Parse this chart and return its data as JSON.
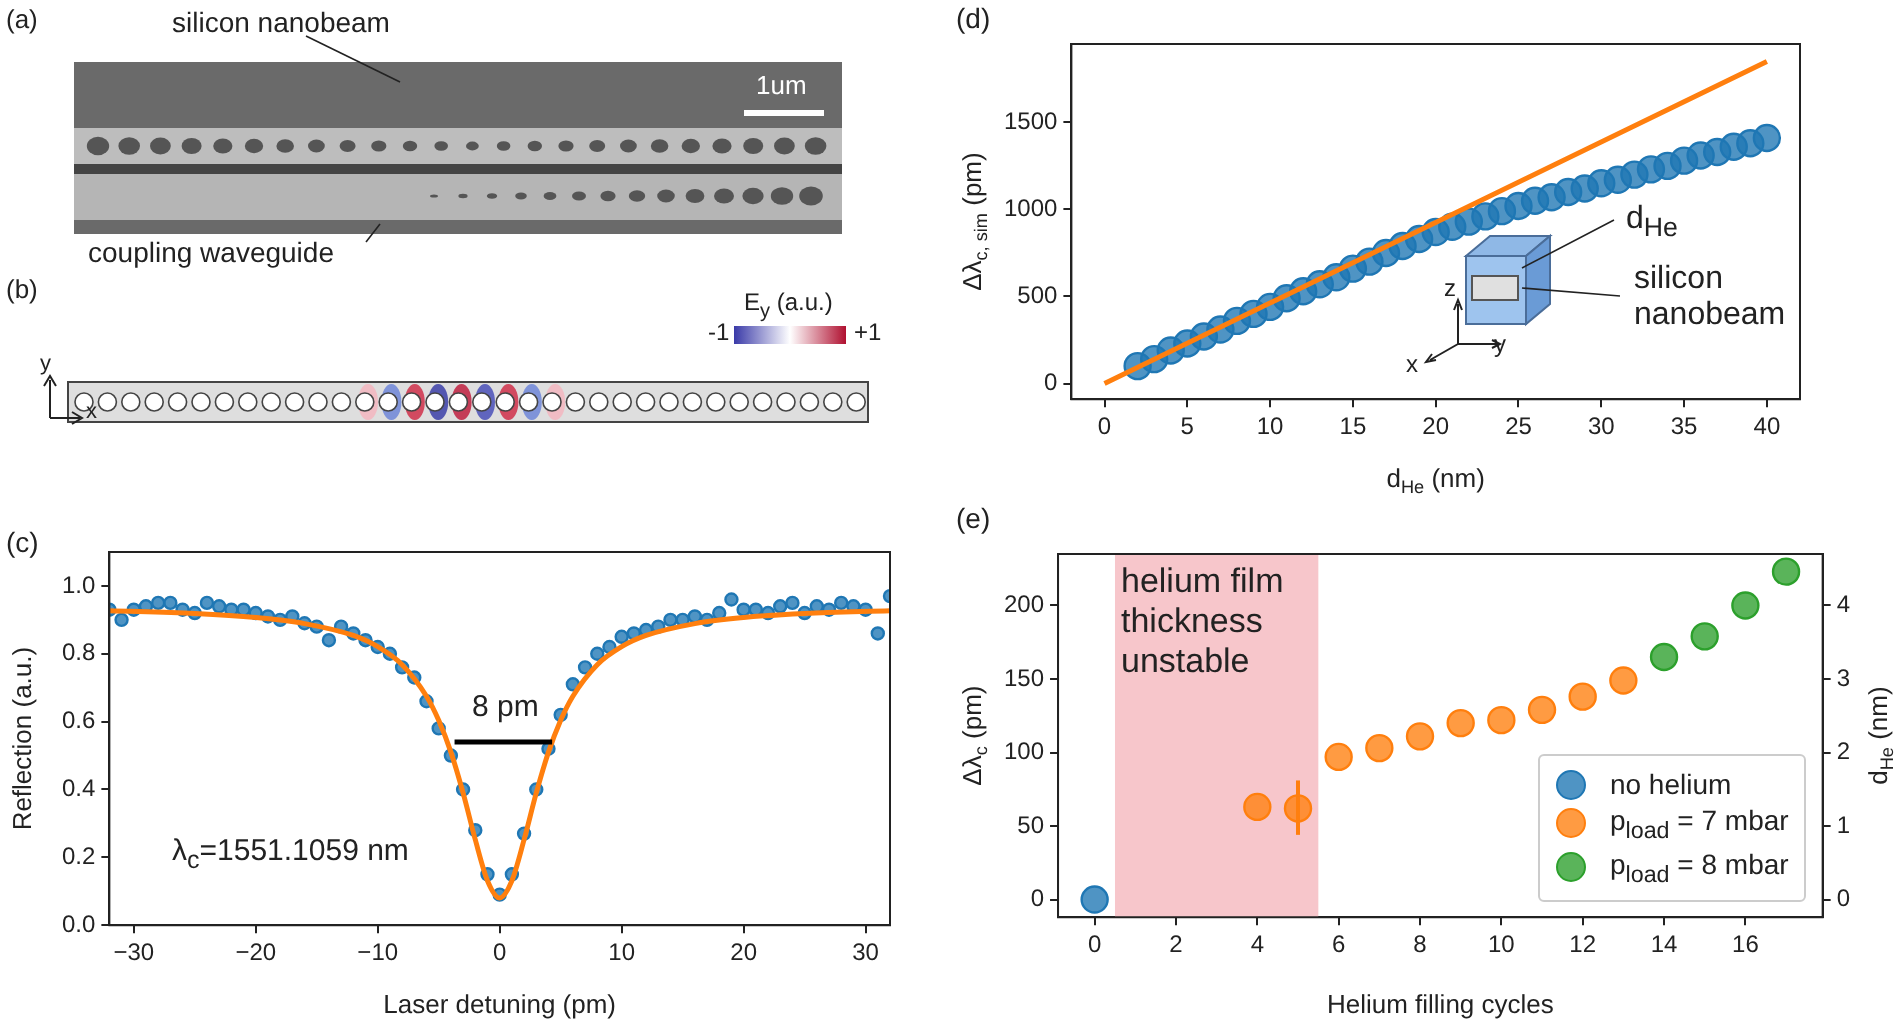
{
  "chart_data": [
    {
      "type": "other",
      "annotations": [
        "(a)",
        "silicon nanobeam",
        "coupling waveguide",
        "1um",
        "(b)",
        "E$_{y}$ (a.u.)",
        "-1",
        "+1",
        "y",
        "x"
      ]
    },
    {
      "type": "scatter",
      "title": "(c)",
      "xlabel": "Laser detuning (pm)",
      "ylabel": "Reflection (a.u.)",
      "xlim": [
        -32,
        32
      ],
      "ylim": [
        0,
        1.1
      ],
      "xticks": [
        {
          "value": -30,
          "label": "−30"
        },
        {
          "value": -20,
          "label": "−20"
        },
        {
          "value": -10,
          "label": "−10"
        },
        0,
        10,
        20,
        30
      ],
      "yticks": [
        {
          "value": 0,
          "label": "0.0"
        },
        {
          "value": 0.2,
          "label": "0.2"
        },
        {
          "value": 0.4,
          "label": "0.4"
        },
        {
          "value": 0.6,
          "label": "0.6"
        },
        {
          "value": 0.8,
          "label": "0.8"
        },
        {
          "value": 1,
          "label": "1.0"
        }
      ],
      "marker": "circle",
      "series": [
        {
          "type": "scatter",
          "color": "#1f77b4",
          "x": [
            -32,
            -31,
            -30,
            -29,
            -28,
            -27,
            -26,
            -25,
            -24,
            -23,
            -22,
            -21,
            -20,
            -19,
            -18,
            -17,
            -16,
            -15,
            -14,
            -13,
            -12,
            -11,
            -10,
            -9,
            -8,
            -7,
            -6,
            -5,
            -4,
            -3,
            -2,
            -1,
            0,
            1,
            2,
            3,
            4,
            5,
            6,
            7,
            8,
            9,
            10,
            11,
            12,
            13,
            14,
            15,
            16,
            17,
            18,
            19,
            20,
            21,
            22,
            23,
            24,
            25,
            26,
            27,
            28,
            29,
            30,
            31,
            32
          ],
          "values": [
            0.93,
            0.9,
            0.93,
            0.94,
            0.95,
            0.95,
            0.93,
            0.92,
            0.95,
            0.94,
            0.93,
            0.93,
            0.92,
            0.91,
            0.9,
            0.91,
            0.89,
            0.88,
            0.84,
            0.88,
            0.86,
            0.84,
            0.82,
            0.8,
            0.76,
            0.73,
            0.66,
            0.58,
            0.5,
            0.4,
            0.28,
            0.15,
            0.09,
            0.15,
            0.27,
            0.4,
            0.52,
            0.62,
            0.71,
            0.76,
            0.8,
            0.82,
            0.85,
            0.86,
            0.87,
            0.88,
            0.9,
            0.9,
            0.91,
            0.9,
            0.92,
            0.96,
            0.93,
            0.93,
            0.92,
            0.94,
            0.95,
            0.92,
            0.94,
            0.93,
            0.95,
            0.94,
            0.93,
            0.86,
            0.97
          ]
        },
        {
          "type": "line",
          "marker": "none",
          "color": "#ff7f0e",
          "x": [
            -32,
            -25,
            -20,
            -16,
            -12,
            -10,
            -8,
            -6,
            -5,
            -4,
            -3,
            -2,
            -1,
            0,
            1,
            2,
            3,
            4,
            5,
            6,
            8,
            10,
            12,
            16,
            20,
            25,
            32
          ],
          "values": [
            0.927,
            0.919,
            0.907,
            0.889,
            0.854,
            0.821,
            0.768,
            0.675,
            0.604,
            0.51,
            0.39,
            0.252,
            0.131,
            0.08,
            0.131,
            0.252,
            0.39,
            0.51,
            0.604,
            0.675,
            0.768,
            0.821,
            0.854,
            0.889,
            0.907,
            0.919,
            0.927
          ]
        },
        {
          "type": "line",
          "marker": "none",
          "color": "#000000",
          "x": [
            -3.7,
            4.3
          ],
          "values": [
            0.54,
            0.54
          ]
        }
      ],
      "annotations": [
        "8 pm",
        "λ$_{c}$=1551.1059 nm"
      ]
    },
    {
      "type": "scatter",
      "title": "(d)",
      "xlabel": "d$_{He}$ (nm)",
      "ylabel": "Δλ$_{c, sim}$ (pm)",
      "xlim": [
        -2,
        42
      ],
      "ylim": [
        -90,
        1950
      ],
      "xticks": [
        0,
        5,
        10,
        15,
        20,
        25,
        30,
        35,
        40
      ],
      "yticks": [
        0,
        500,
        1000,
        1500
      ],
      "marker": "circle",
      "series": [
        {
          "type": "scatter",
          "color": "#1f77b4",
          "x": [
            2,
            3,
            4,
            5,
            6,
            7,
            8,
            9,
            10,
            11,
            12,
            13,
            14,
            15,
            16,
            17,
            18,
            19,
            20,
            21,
            22,
            23,
            24,
            25,
            26,
            27,
            28,
            29,
            30,
            31,
            32,
            33,
            34,
            35,
            36,
            37,
            38,
            39,
            40
          ],
          "values": [
            100,
            140,
            190,
            230,
            270,
            310,
            360,
            400,
            440,
            490,
            530,
            570,
            610,
            660,
            700,
            750,
            790,
            830,
            870,
            900,
            930,
            960,
            990,
            1020,
            1050,
            1070,
            1100,
            1120,
            1150,
            1170,
            1200,
            1230,
            1250,
            1280,
            1310,
            1330,
            1360,
            1380,
            1410
          ]
        },
        {
          "type": "line",
          "marker": "none",
          "color": "#ff7f0e",
          "x": [
            0,
            40
          ],
          "values": [
            0,
            1850
          ]
        }
      ],
      "annotations": [
        "d$_{He}$",
        "silicon nanobeam",
        "z",
        "y",
        "x"
      ]
    },
    {
      "type": "scatter",
      "title": "(e)",
      "xlabel": "Helium filling cycles",
      "ylabel": "Δλ$_{c}$ (pm)",
      "y2label": "d$_{He}$ (nm)",
      "xlim": [
        -0.9,
        17.9
      ],
      "ylim": [
        -12,
        235
      ],
      "y2lim": [
        -0.24,
        4.7
      ],
      "xticks": [
        0,
        2,
        4,
        6,
        8,
        10,
        12,
        14,
        16
      ],
      "yticks": [
        0,
        50,
        100,
        150,
        200
      ],
      "y2ticks": [
        0,
        1,
        2,
        3,
        4
      ],
      "marker": "circle",
      "legend": "bottom right",
      "bands": [
        {
          "axis": "x",
          "from": 0.5,
          "to": 5.5,
          "label": "helium film thickness unstable",
          "color": "#f7c6cb"
        }
      ],
      "series": [
        {
          "name": "no helium",
          "color": "#1f77b4",
          "x": [
            0
          ],
          "values": [
            0
          ]
        },
        {
          "name": "p$_{load}$ = 7 mbar",
          "color": "#ff7f0e",
          "x": [
            4,
            5,
            6,
            7,
            8,
            9,
            10,
            11,
            12,
            13
          ],
          "values": [
            63,
            62,
            97,
            103,
            111,
            120,
            122,
            129,
            138,
            149
          ],
          "errors": [
            null,
            [
              44,
              81
            ],
            null,
            null,
            null,
            null,
            null,
            null,
            null,
            null
          ]
        },
        {
          "name": "p$_{load}$ = 8 mbar",
          "color": "#2ca02c",
          "x": [
            14,
            15,
            16,
            17
          ],
          "values": [
            165,
            179,
            200,
            223
          ]
        }
      ]
    }
  ]
}
